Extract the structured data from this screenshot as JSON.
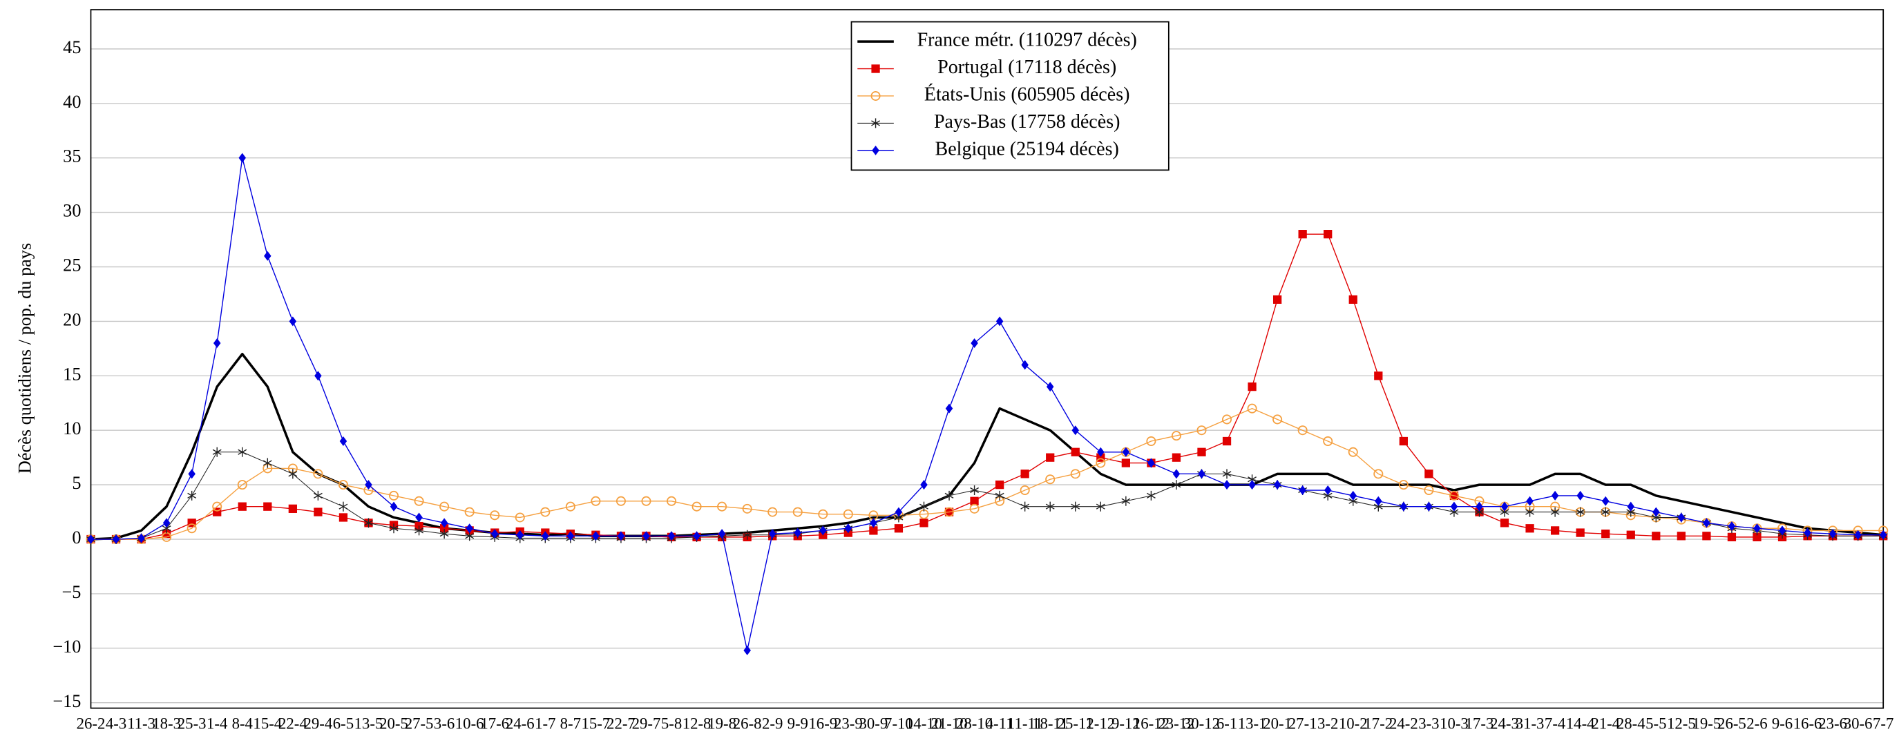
{
  "chart_data": {
    "type": "line",
    "y_label": "Décès quotidiens / pop. du pays",
    "categories": [
      "26-2",
      "4-3",
      "11-3",
      "18-3",
      "25-3",
      "1-4",
      "8-4",
      "15-4",
      "22-4",
      "29-4",
      "6-5",
      "13-5",
      "20-5",
      "27-5",
      "3-6",
      "10-6",
      "17-6",
      "24-6",
      "1-7",
      "8-7",
      "15-7",
      "22-7",
      "29-7",
      "5-8",
      "12-8",
      "19-8",
      "26-8",
      "2-9",
      "9-9",
      "16-9",
      "23-9",
      "30-9",
      "7-10",
      "14-10",
      "21-10",
      "28-10",
      "4-11",
      "11-11",
      "18-11",
      "25-11",
      "2-12",
      "9-12",
      "16-12",
      "23-12",
      "30-12",
      "6-1",
      "13-1",
      "20-1",
      "27-1",
      "3-2",
      "10-2",
      "17-2",
      "24-2",
      "3-3",
      "10-3",
      "17-3",
      "24-3",
      "31-3",
      "7-4",
      "14-4",
      "21-4",
      "28-4",
      "5-5",
      "12-5",
      "19-5",
      "26-5",
      "2-6",
      "9-6",
      "16-6",
      "23-6",
      "30-6",
      "7-7"
    ],
    "series": [
      {
        "name": "France métr. (110297 décès)",
        "color": "#000000",
        "marker": "none",
        "width": 2,
        "values": [
          0,
          0.1,
          0.8,
          3,
          8,
          14,
          17,
          14,
          8,
          6,
          5,
          3,
          2,
          1.5,
          1,
          0.8,
          0.6,
          0.5,
          0.4,
          0.5,
          0.3,
          0.3,
          0.3,
          0.3,
          0.4,
          0.5,
          0.6,
          0.8,
          1,
          1.2,
          1.5,
          2,
          2,
          3,
          4,
          7,
          12,
          11,
          10,
          8,
          6,
          5,
          5,
          5,
          5,
          5,
          5,
          6,
          6,
          6,
          5,
          5,
          5,
          5,
          4.5,
          5,
          5,
          5,
          6,
          6,
          5,
          5,
          4,
          3.5,
          3,
          2.5,
          2,
          1.5,
          1,
          0.8,
          0.6,
          0.4
        ]
      },
      {
        "name": "Portugal (17118 décès)",
        "color": "#e00000",
        "marker": "square",
        "width": 0.8,
        "values": [
          0,
          0,
          0,
          0.5,
          1.5,
          2.5,
          3,
          3,
          2.8,
          2.5,
          2,
          1.5,
          1.3,
          1.2,
          1,
          0.8,
          0.6,
          0.7,
          0.6,
          0.5,
          0.4,
          0.3,
          0.3,
          0.2,
          0.2,
          0.2,
          0.2,
          0.3,
          0.3,
          0.4,
          0.6,
          0.8,
          1,
          1.5,
          2.5,
          3.5,
          5,
          6,
          7.5,
          8,
          7.5,
          7,
          7,
          7.5,
          8,
          9,
          14,
          22,
          28,
          28,
          22,
          15,
          9,
          6,
          4,
          2.5,
          1.5,
          1,
          0.8,
          0.6,
          0.5,
          0.4,
          0.3,
          0.3,
          0.3,
          0.2,
          0.2,
          0.2,
          0.3,
          0.3,
          0.3,
          0.3
        ]
      },
      {
        "name": "États-Unis (605905 décès)",
        "color": "#f5a040",
        "marker": "circle",
        "width": 0.8,
        "values": [
          0,
          0,
          0,
          0.2,
          1,
          3,
          5,
          6.5,
          6.5,
          6,
          5,
          4.5,
          4,
          3.5,
          3,
          2.5,
          2.2,
          2,
          2.5,
          3,
          3.5,
          3.5,
          3.5,
          3.5,
          3,
          3,
          2.8,
          2.5,
          2.5,
          2.3,
          2.3,
          2.2,
          2.2,
          2.3,
          2.5,
          2.8,
          3.5,
          4.5,
          5.5,
          6,
          7,
          8,
          9,
          9.5,
          10,
          11,
          12,
          11,
          10,
          9,
          8,
          6,
          5,
          4.5,
          4,
          3.5,
          3,
          3,
          3,
          2.5,
          2.5,
          2.2,
          2,
          1.8,
          1.5,
          1.2,
          1,
          1,
          0.8,
          0.8,
          0.8,
          0.8
        ]
      },
      {
        "name": "Pays-Bas (17758 décès)",
        "color": "#222222",
        "marker": "star",
        "width": 0.6,
        "values": [
          0,
          0,
          0.1,
          1,
          4,
          8,
          8,
          7,
          6,
          4,
          3,
          1.5,
          1,
          0.8,
          0.5,
          0.3,
          0.2,
          0.1,
          0.1,
          0.1,
          0.1,
          0.1,
          0.1,
          0.1,
          0.2,
          0.3,
          0.4,
          0.4,
          0.5,
          0.8,
          1,
          1.5,
          2,
          3,
          4,
          4.5,
          4,
          3,
          3,
          3,
          3,
          3.5,
          4,
          5,
          6,
          6,
          5.5,
          5,
          4.5,
          4,
          3.5,
          3,
          3,
          3,
          2.5,
          2.5,
          2.5,
          2.5,
          2.5,
          2.5,
          2.5,
          2.5,
          2,
          2,
          1.5,
          1,
          0.8,
          0.5,
          0.4,
          0.3,
          0.3,
          0.3
        ]
      },
      {
        "name": "Belgique (25194 décès)",
        "color": "#0000e0",
        "marker": "diamond",
        "width": 0.8,
        "values": [
          0,
          0,
          0.1,
          1.5,
          6,
          18,
          35,
          26,
          20,
          15,
          9,
          5,
          3,
          2,
          1.5,
          1,
          0.5,
          0.4,
          0.3,
          0.3,
          0.3,
          0.3,
          0.3,
          0.3,
          0.3,
          0.5,
          -10.2,
          0.5,
          0.6,
          0.8,
          1,
          1.5,
          2.5,
          5,
          12,
          18,
          20,
          16,
          14,
          10,
          8,
          8,
          7,
          6,
          6,
          5,
          5,
          5,
          4.5,
          4.5,
          4,
          3.5,
          3,
          3,
          3,
          3,
          3,
          3.5,
          4,
          4,
          3.5,
          3,
          2.5,
          2,
          1.5,
          1.2,
          1,
          0.8,
          0.6,
          0.5,
          0.4,
          0.4
        ]
      }
    ],
    "ylim": [
      -15.5,
      48.6
    ],
    "yticks": [
      {
        "value": -15,
        "label": "−15"
      },
      {
        "value": -10,
        "label": "−10"
      },
      {
        "value": -5,
        "label": "−5"
      },
      0,
      5,
      10,
      15,
      20,
      25,
      30,
      35,
      40,
      45
    ],
    "grid": true,
    "legend": "top-center"
  }
}
